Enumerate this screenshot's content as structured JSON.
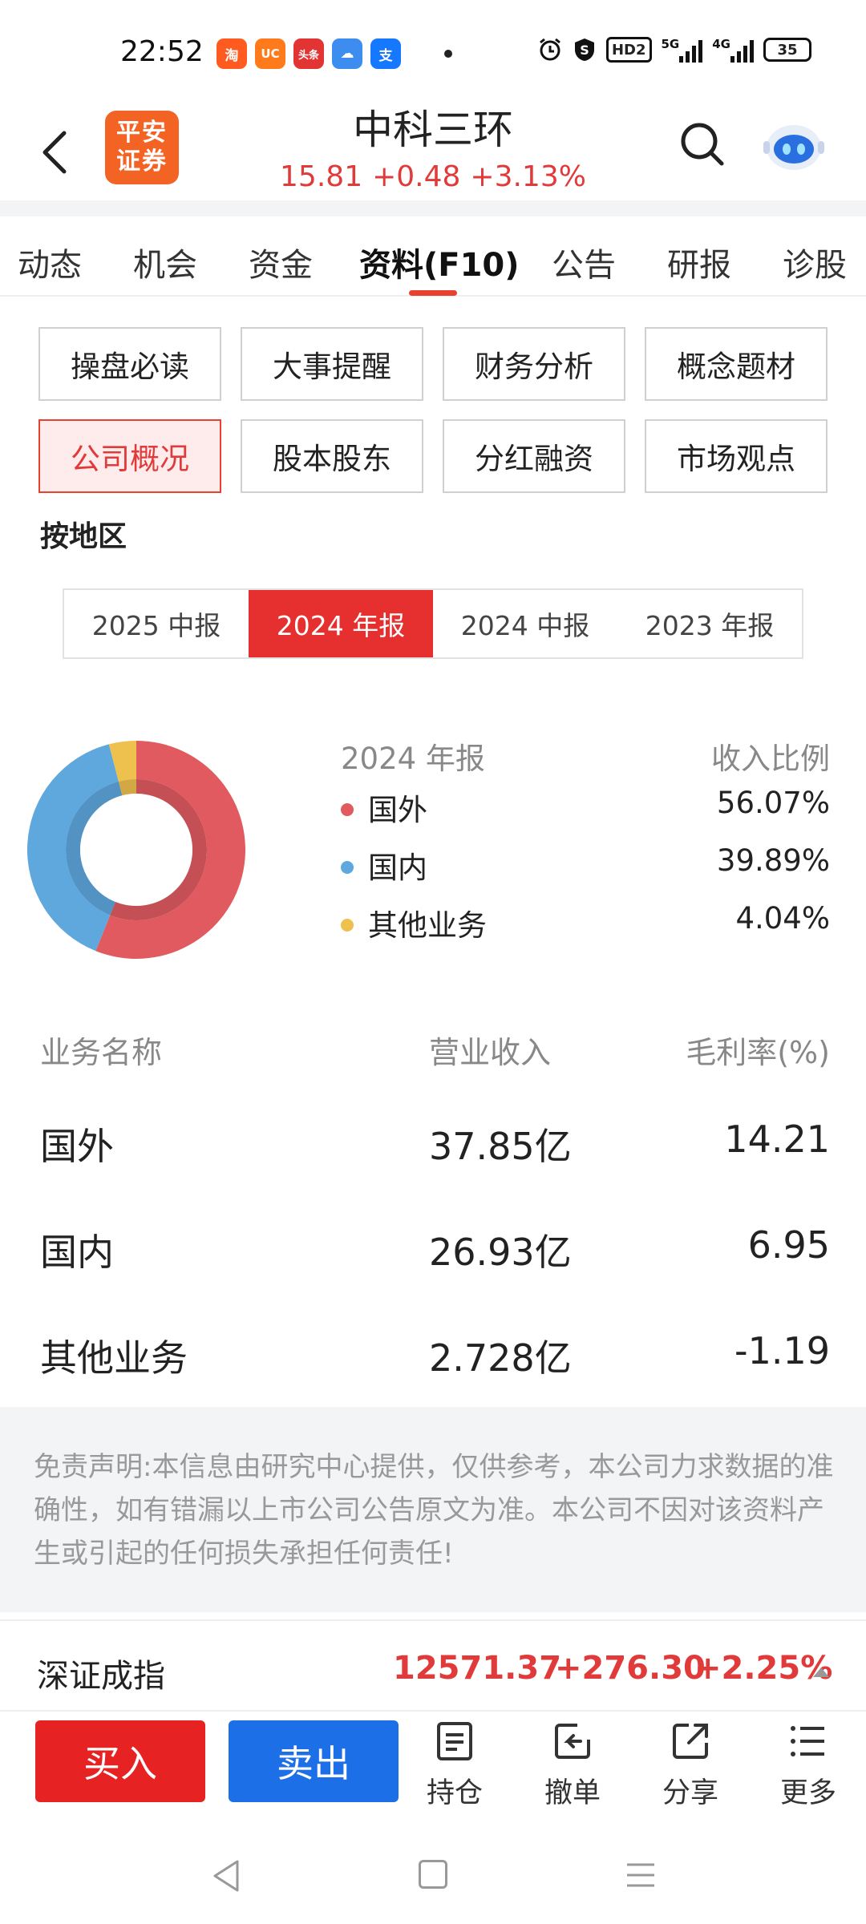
{
  "status_bar": {
    "time": "22:52",
    "apps": [
      {
        "icon": "taobao-app-icon",
        "glyph": "淘",
        "color": "#ff5a1f"
      },
      {
        "icon": "browser-app-icon",
        "glyph": "UC",
        "color": "#ff7a1a"
      },
      {
        "icon": "toutiao-app-icon",
        "glyph": "头条",
        "color": "#e33434"
      },
      {
        "icon": "weather-app-icon",
        "glyph": "☁",
        "color": "#3d8cf0"
      },
      {
        "icon": "alipay-app-icon",
        "glyph": "支",
        "color": "#1677ff"
      }
    ],
    "hd_label": "HD2",
    "net_5g": "5G",
    "net_4g": "4G",
    "battery": "35"
  },
  "header": {
    "logo_text": "平安\n证券",
    "stock_name": "中科三环",
    "price": "15.81",
    "change": "+0.48",
    "change_pct": "+3.13%"
  },
  "tabs": [
    "动态",
    "机会",
    "资金",
    "资料(F10)",
    "公告",
    "研报",
    "诊股"
  ],
  "active_tab": "资料(F10)",
  "grid_buttons": [
    [
      "操盘必读",
      "大事提醒",
      "财务分析",
      "概念题材"
    ],
    [
      "公司概况",
      "股本股东",
      "分红融资",
      "市场观点"
    ]
  ],
  "active_grid_button": "公司概况",
  "section_title": "按地区",
  "periods": [
    "2025 中报",
    "2024 年报",
    "2024 中报",
    "2023 年报"
  ],
  "active_period": "2024 年报",
  "legend_header": {
    "period": "2024 年报",
    "ratio_label": "收入比例"
  },
  "chart_data": {
    "type": "pie",
    "categories": [
      "国外",
      "国内",
      "其他业务"
    ],
    "values": [
      56.07,
      39.89,
      4.04
    ],
    "colors": [
      "#e05a60",
      "#5ea8de",
      "#eec04e"
    ],
    "unit": "%"
  },
  "legend": [
    {
      "name": "国外",
      "pct": "56.07%",
      "color": "#e05a60"
    },
    {
      "name": "国内",
      "pct": "39.89%",
      "color": "#5ea8de"
    },
    {
      "name": "其他业务",
      "pct": "4.04%",
      "color": "#eec04e"
    }
  ],
  "table": {
    "headers": [
      "业务名称",
      "营业收入",
      "毛利率(%)"
    ],
    "rows": [
      [
        "国外",
        "37.85亿",
        "14.21"
      ],
      [
        "国内",
        "26.93亿",
        "6.95"
      ],
      [
        "其他业务",
        "2.728亿",
        "-1.19"
      ]
    ]
  },
  "disclaimer": "免责声明:本信息由研究中心提供，仅供参考，本公司力求数据的准确性，如有错漏以上市公司公告原文为准。本公司不因对该资料产生或引起的任何损失承担任何责任!",
  "index_bar": {
    "name": "深证成指",
    "value": "12571.37",
    "change": "+276.30",
    "change_pct": "+2.25%"
  },
  "bottom_bar": {
    "buy": "买入",
    "sell": "卖出",
    "actions": [
      {
        "label": "持仓",
        "icon": "holdings-icon"
      },
      {
        "label": "撤单",
        "icon": "cancel-order-icon"
      },
      {
        "label": "分享",
        "icon": "share-icon"
      },
      {
        "label": "更多",
        "icon": "more-icon"
      }
    ]
  }
}
